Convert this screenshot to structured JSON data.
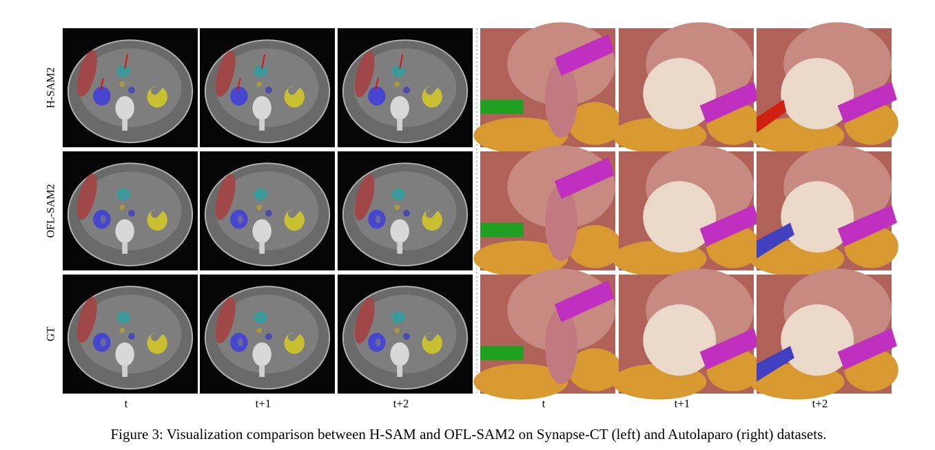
{
  "row_labels": [
    "H-SAM2",
    "OFL-SAM2",
    "GT"
  ],
  "column_labels": {
    "left": [
      "t",
      "t+1",
      "t+2"
    ],
    "right": [
      "t",
      "t+1",
      "t+2"
    ]
  },
  "caption": "Figure 3: Visualization comparison between H-SAM and OFL-SAM2 on Synapse-CT (left) and Autolaparo (right) datasets."
}
